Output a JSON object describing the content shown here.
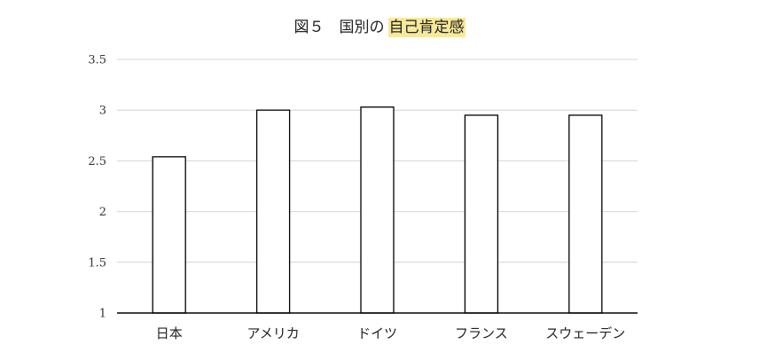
{
  "chart_data": {
    "type": "bar",
    "title": {
      "prefix": "図５　国別の",
      "highlighted": "自己肯定感"
    },
    "highlight_color": "#f7e99c",
    "categories": [
      "日本",
      "アメリカ",
      "ドイツ",
      "フランス",
      "スウェーデン"
    ],
    "values": [
      2.54,
      3.0,
      3.03,
      2.95,
      2.95
    ],
    "ylim": [
      1,
      3.5
    ],
    "yticks": [
      1,
      1.5,
      2,
      2.5,
      3,
      3.5
    ],
    "ytick_labels": [
      "1",
      "1.5",
      "2",
      "2.5",
      "3",
      "3.5"
    ],
    "xlabel": "",
    "ylabel": "",
    "grid": true,
    "legend": "none",
    "bar_fill": "#ffffff",
    "bar_stroke": "#000000"
  }
}
